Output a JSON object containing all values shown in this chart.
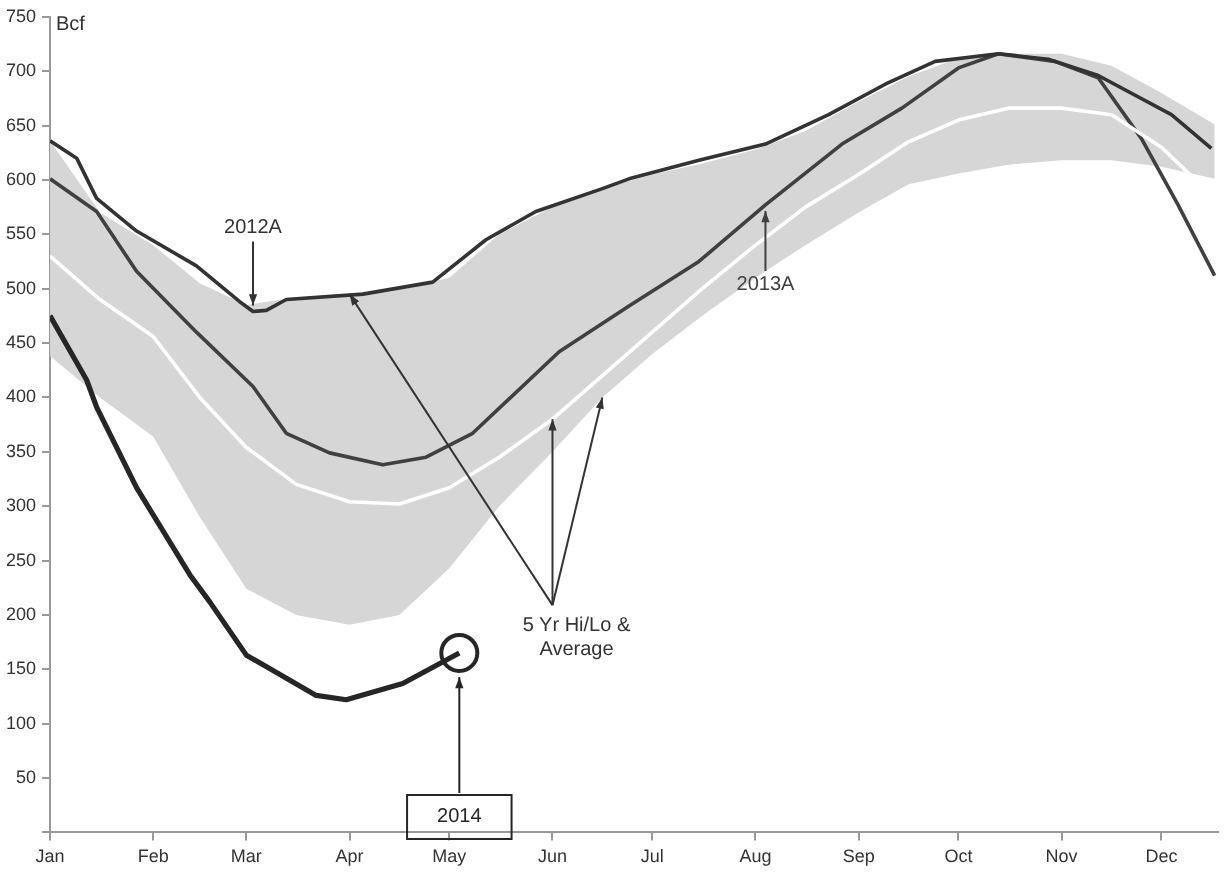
{
  "chart_data": {
    "type": "line",
    "ylabel": "Bcf",
    "xlim": [
      "--01-01",
      "--12-18"
    ],
    "xticks": [
      {
        "value": "--01-01",
        "label": "Jan"
      },
      {
        "value": "--02-01",
        "label": "Feb"
      },
      {
        "value": "--03-01",
        "label": "Mar"
      },
      {
        "value": "--04-01",
        "label": "Apr"
      },
      {
        "value": "--05-01",
        "label": "May"
      },
      {
        "value": "--06-01",
        "label": "Jun"
      },
      {
        "value": "--07-01",
        "label": "Jul"
      },
      {
        "value": "--08-01",
        "label": "Aug"
      },
      {
        "value": "--09-01",
        "label": "Sep"
      },
      {
        "value": "--10-01",
        "label": "Oct"
      },
      {
        "value": "--11-01",
        "label": "Nov"
      },
      {
        "value": "--12-01",
        "label": "Dec"
      }
    ],
    "ylim": [
      0,
      750
    ],
    "yticks": [
      {
        "value": 0,
        "label": null
      },
      50,
      100,
      150,
      200,
      250,
      300,
      350,
      400,
      450,
      500,
      550,
      600,
      650,
      700,
      750
    ],
    "grid": false,
    "legend": false,
    "marker": "none",
    "line_style": "solid",
    "series": [
      {
        "color": "#ffffff",
        "x": [
          "--01-01",
          "--01-16",
          "--02-01",
          "--02-15",
          "--03-01",
          "--03-16",
          "--04-01",
          "--04-16",
          "--05-01",
          "--05-16",
          "--06-01",
          "--06-16",
          "--07-01",
          "--07-16",
          "--08-01",
          "--08-16",
          "--09-01",
          "--09-16",
          "--10-01",
          "--10-16",
          "--11-01",
          "--11-16",
          "--12-01",
          "--12-17"
        ],
        "values": [
          530,
          490,
          456,
          400,
          354,
          320,
          304,
          302,
          317,
          345,
          380,
          420,
          460,
          500,
          540,
          575,
          605,
          635,
          655,
          666,
          666,
          660,
          630,
          583
        ],
        "lower": [
          438,
          400,
          364,
          290,
          224,
          200,
          191,
          200,
          243,
          300,
          350,
          400,
          440,
          475,
          510,
          540,
          570,
          596,
          606,
          614,
          618,
          618,
          612,
          601
        ],
        "upper": [
          636,
          570,
          540,
          505,
          485,
          492,
          495,
          500,
          510,
          550,
          575,
          592,
          605,
          615,
          628,
          645,
          672,
          695,
          712,
          716,
          716,
          705,
          680,
          651
        ]
      },
      {
        "name": "2012A",
        "color": "#333333",
        "x": [
          "--01-01",
          "--01-09",
          "--01-15",
          "--01-27",
          "--02-14",
          "--02-27",
          "--03-03",
          "--03-07",
          "--03-13",
          "--04-05",
          "--04-26",
          "--05-12",
          "--05-27",
          "--06-16",
          "--06-24",
          "--07-15",
          "--08-04",
          "--08-23",
          "--09-09",
          "--09-24",
          "--10-13",
          "--10-28",
          "--11-12",
          "--12-04",
          "--12-16"
        ],
        "values": [
          636,
          620,
          583,
          553,
          521,
          488,
          479,
          480,
          490,
          495,
          506,
          545,
          571,
          592,
          601,
          618,
          633,
          660,
          688,
          709,
          716,
          711,
          696,
          660,
          629
        ]
      },
      {
        "name": "2013A",
        "color": "#404040",
        "x": [
          "--01-01",
          "--01-15",
          "--01-27",
          "--02-14",
          "--03-03",
          "--03-13",
          "--03-26",
          "--04-11",
          "--04-24",
          "--05-08",
          "--06-03",
          "--06-24",
          "--07-15",
          "--08-04",
          "--08-27",
          "--09-14",
          "--10-01",
          "--10-13",
          "--10-30",
          "--11-12",
          "--11-25",
          "--12-06",
          "--12-17"
        ],
        "values": [
          601,
          571,
          516,
          460,
          410,
          367,
          349,
          338,
          345,
          367,
          442,
          484,
          525,
          577,
          633,
          666,
          703,
          716,
          709,
          694,
          638,
          577,
          512
        ]
      },
      {
        "name": "2014",
        "color": "#262626",
        "x": [
          "--01-01",
          "--01-12",
          "--01-15",
          "--01-27",
          "--02-12",
          "--02-18",
          "--03-01",
          "--03-22",
          "--03-31",
          "--04-17",
          "--05-04"
        ],
        "values": [
          475,
          416,
          391,
          317,
          237,
          212,
          163,
          126,
          122,
          137,
          165
        ]
      }
    ],
    "annotations": [
      {
        "text": "5 Yr Hi/Lo & Average",
        "x": "--06-01",
        "y": 380
      }
    ]
  }
}
